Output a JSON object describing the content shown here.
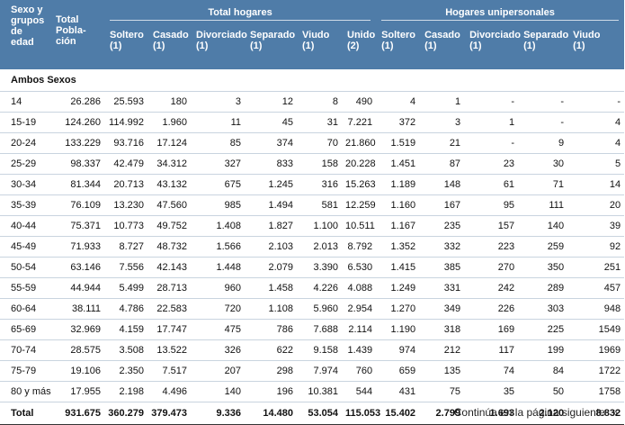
{
  "header": {
    "row_label": "Sexo y grupos de edad",
    "total_label": "Total Pobla-ción",
    "group_hogares": "Total hogares",
    "group_unipersonales": "Hogares unipersonales",
    "cols_hogares": [
      {
        "name": "Soltero",
        "note": "(1)"
      },
      {
        "name": "Casado",
        "note": "(1)"
      },
      {
        "name": "Divorciado",
        "note": "(1)"
      },
      {
        "name": "Separado",
        "note": "(1)"
      },
      {
        "name": "Viudo",
        "note": "(1)"
      },
      {
        "name": "Unido",
        "note": "(2)"
      }
    ],
    "cols_unipersonales": [
      {
        "name": "Soltero",
        "note": "(1)"
      },
      {
        "name": "Casado",
        "note": "(1)"
      },
      {
        "name": "Divorciado",
        "note": "(1)"
      },
      {
        "name": "Separado",
        "note": "(1)"
      },
      {
        "name": "Viudo",
        "note": "(1)"
      }
    ]
  },
  "section_label": "Ambos Sexos",
  "rows": [
    {
      "label": "14",
      "values": [
        "26.286",
        "25.593",
        "180",
        "3",
        "12",
        "8",
        "490",
        "4",
        "1",
        "-",
        "-",
        "-"
      ]
    },
    {
      "label": "15-19",
      "values": [
        "124.260",
        "114.992",
        "1.960",
        "11",
        "45",
        "31",
        "7.221",
        "372",
        "3",
        "1",
        "-",
        "4"
      ]
    },
    {
      "label": "20-24",
      "values": [
        "133.229",
        "93.716",
        "17.124",
        "85",
        "374",
        "70",
        "21.860",
        "1.519",
        "21",
        "-",
        "9",
        "4"
      ]
    },
    {
      "label": "25-29",
      "values": [
        "98.337",
        "42.479",
        "34.312",
        "327",
        "833",
        "158",
        "20.228",
        "1.451",
        "87",
        "23",
        "30",
        "5"
      ]
    },
    {
      "label": "30-34",
      "values": [
        "81.344",
        "20.713",
        "43.132",
        "675",
        "1.245",
        "316",
        "15.263",
        "1.189",
        "148",
        "61",
        "71",
        "14"
      ]
    },
    {
      "label": "35-39",
      "values": [
        "76.109",
        "13.230",
        "47.560",
        "985",
        "1.494",
        "581",
        "12.259",
        "1.160",
        "167",
        "95",
        "111",
        "20"
      ]
    },
    {
      "label": "40-44",
      "values": [
        "75.371",
        "10.773",
        "49.752",
        "1.408",
        "1.827",
        "1.100",
        "10.511",
        "1.167",
        "235",
        "157",
        "140",
        "39"
      ]
    },
    {
      "label": "45-49",
      "values": [
        "71.933",
        "8.727",
        "48.732",
        "1.566",
        "2.103",
        "2.013",
        "8.792",
        "1.352",
        "332",
        "223",
        "259",
        "92"
      ]
    },
    {
      "label": "50-54",
      "values": [
        "63.146",
        "7.556",
        "42.143",
        "1.448",
        "2.079",
        "3.390",
        "6.530",
        "1.415",
        "385",
        "270",
        "350",
        "251"
      ]
    },
    {
      "label": "55-59",
      "values": [
        "44.944",
        "5.499",
        "28.713",
        "960",
        "1.458",
        "4.226",
        "4.088",
        "1.249",
        "331",
        "242",
        "289",
        "457"
      ]
    },
    {
      "label": "60-64",
      "values": [
        "38.111",
        "4.786",
        "22.583",
        "720",
        "1.108",
        "5.960",
        "2.954",
        "1.270",
        "349",
        "226",
        "303",
        "948"
      ]
    },
    {
      "label": "65-69",
      "values": [
        "32.969",
        "4.159",
        "17.747",
        "475",
        "786",
        "7.688",
        "2.114",
        "1.190",
        "318",
        "169",
        "225",
        "1549"
      ]
    },
    {
      "label": "70-74",
      "values": [
        "28.575",
        "3.508",
        "13.522",
        "326",
        "622",
        "9.158",
        "1.439",
        "974",
        "212",
        "117",
        "199",
        "1969"
      ]
    },
    {
      "label": "75-79",
      "values": [
        "19.106",
        "2.350",
        "7.517",
        "207",
        "298",
        "7.974",
        "760",
        "659",
        "135",
        "74",
        "84",
        "1722"
      ]
    },
    {
      "label": "80 y más",
      "values": [
        "17.955",
        "2.198",
        "4.496",
        "140",
        "196",
        "10.381",
        "544",
        "431",
        "75",
        "35",
        "50",
        "1758"
      ]
    }
  ],
  "total_row": {
    "label": "Total",
    "values": [
      "931.675",
      "360.279",
      "379.473",
      "9.336",
      "14.480",
      "53.054",
      "115.053",
      "15.402",
      "2.799",
      "1.693",
      "2.120",
      "8.832"
    ]
  },
  "footer": {
    "continue_text": "Continúa en la página siguiente",
    "arrow_icon": "double-chevron-right-icon"
  },
  "colors": {
    "header_bg": "#4f7ca8",
    "header_text": "#ffffff",
    "row_rule": "#c9d4df"
  }
}
